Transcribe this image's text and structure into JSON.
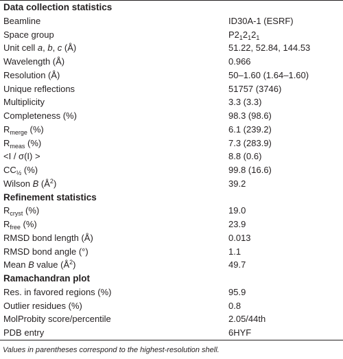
{
  "sections": [
    {
      "title": "Data collection statistics",
      "rows": [
        [
          [
            "Beamline"
          ],
          [
            "ID30A-1 (ESRF)"
          ]
        ],
        [
          [
            "Space group"
          ],
          [
            "P2",
            {
              "text": "1",
              "style": "sub"
            },
            "2",
            {
              "text": "1",
              "style": "sub"
            },
            "2",
            {
              "text": "1",
              "style": "sub"
            }
          ]
        ],
        [
          [
            "Unit cell ",
            {
              "text": "a",
              "style": "i"
            },
            ", ",
            {
              "text": "b",
              "style": "i"
            },
            ", ",
            {
              "text": "c",
              "style": "i"
            },
            " (Å)"
          ],
          [
            "51.22, 52.84, 144.53"
          ]
        ],
        [
          [
            "Wavelength (Å)"
          ],
          [
            "0.966"
          ]
        ],
        [
          [
            "Resolution (Å)"
          ],
          [
            "50–1.60 (1.64–1.60)"
          ]
        ],
        [
          [
            "Unique reflections"
          ],
          [
            "51757 (3746)"
          ]
        ],
        [
          [
            "Multiplicity"
          ],
          [
            "3.3 (3.3)"
          ]
        ],
        [
          [
            "Completeness (%)"
          ],
          [
            "98.3 (98.6)"
          ]
        ],
        [
          [
            "R",
            {
              "text": "merge",
              "style": "sub"
            },
            " (%)"
          ],
          [
            "6.1 (239.2)"
          ]
        ],
        [
          [
            "R",
            {
              "text": "meas",
              "style": "sub"
            },
            " (%)"
          ],
          [
            "7.3 (283.9)"
          ]
        ],
        [
          [
            "<I / σ(I) >"
          ],
          [
            "8.8 (0.6)"
          ]
        ],
        [
          [
            "CC",
            {
              "text": "½",
              "style": "sub"
            },
            " (%)"
          ],
          [
            "99.8 (16.6)"
          ]
        ],
        [
          [
            "Wilson ",
            {
              "text": "B",
              "style": "i"
            },
            " (Å",
            {
              "text": "2",
              "style": "sup"
            },
            ")"
          ],
          [
            "39.2"
          ]
        ]
      ]
    },
    {
      "title": "Refinement statistics",
      "rows": [
        [
          [
            "R",
            {
              "text": "cryst",
              "style": "sub"
            },
            " (%)"
          ],
          [
            "19.0"
          ]
        ],
        [
          [
            "R",
            {
              "text": "free",
              "style": "sub"
            },
            " (%)"
          ],
          [
            "23.9"
          ]
        ],
        [
          [
            "RMSD bond length (Å)"
          ],
          [
            "0.013"
          ]
        ],
        [
          [
            "RMSD bond angle (°)"
          ],
          [
            "1.1"
          ]
        ],
        [
          [
            "Mean ",
            {
              "text": "B",
              "style": "i"
            },
            " value (Å",
            {
              "text": "2",
              "style": "sup"
            },
            ")"
          ],
          [
            "49.7"
          ]
        ]
      ]
    },
    {
      "title": "Ramachandran plot",
      "rows": [
        [
          [
            "Res. in favored regions (%)"
          ],
          [
            "95.9"
          ]
        ],
        [
          [
            "Outlier residues (%)"
          ],
          [
            "0.8"
          ]
        ],
        [
          [
            "MolProbity score/percentile"
          ],
          [
            "2.05/44th"
          ]
        ],
        [
          [
            "PDB entry"
          ],
          [
            "6HYF"
          ]
        ]
      ]
    }
  ],
  "footnote": "Values in parentheses correspond to the highest-resolution shell."
}
